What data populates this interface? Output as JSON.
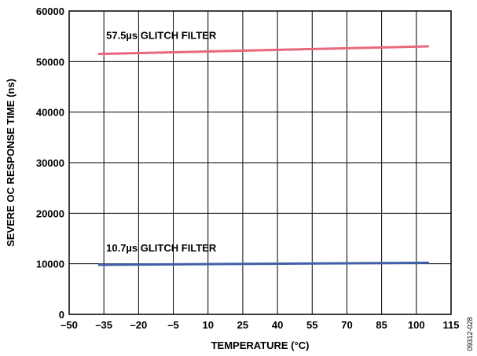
{
  "chart_data": {
    "type": "line",
    "xlabel": "TEMPERATURE (°C)",
    "ylabel": "SEVERE OC RESPONSE TIME (ns)",
    "xlim": [
      -50,
      115
    ],
    "ylim": [
      0,
      60000
    ],
    "x_ticks": [
      -50,
      -35,
      -20,
      -5,
      10,
      25,
      40,
      55,
      70,
      85,
      100,
      115
    ],
    "x_tick_labels": [
      "–50",
      "–35",
      "–20",
      "–5",
      "10",
      "25",
      "40",
      "55",
      "70",
      "85",
      "100",
      "115"
    ],
    "y_ticks": [
      0,
      10000,
      20000,
      30000,
      40000,
      50000,
      60000
    ],
    "y_tick_labels": [
      "0",
      "10000",
      "20000",
      "30000",
      "40000",
      "50000",
      "60000"
    ],
    "grid": true,
    "series": [
      {
        "name": "57.5µs GLITCH FILTER",
        "color": "#e8687c",
        "x": [
          -37,
          105
        ],
        "y": [
          51500,
          53000
        ]
      },
      {
        "name": "10.7µs GLITCH FILTER",
        "color": "#3f5fa6",
        "x": [
          -37,
          105
        ],
        "y": [
          9800,
          10200
        ]
      }
    ],
    "annotations": [
      "57.5µs GLITCH FILTER",
      "10.7µs GLITCH FILTER"
    ],
    "figure_id": "09312-028"
  }
}
